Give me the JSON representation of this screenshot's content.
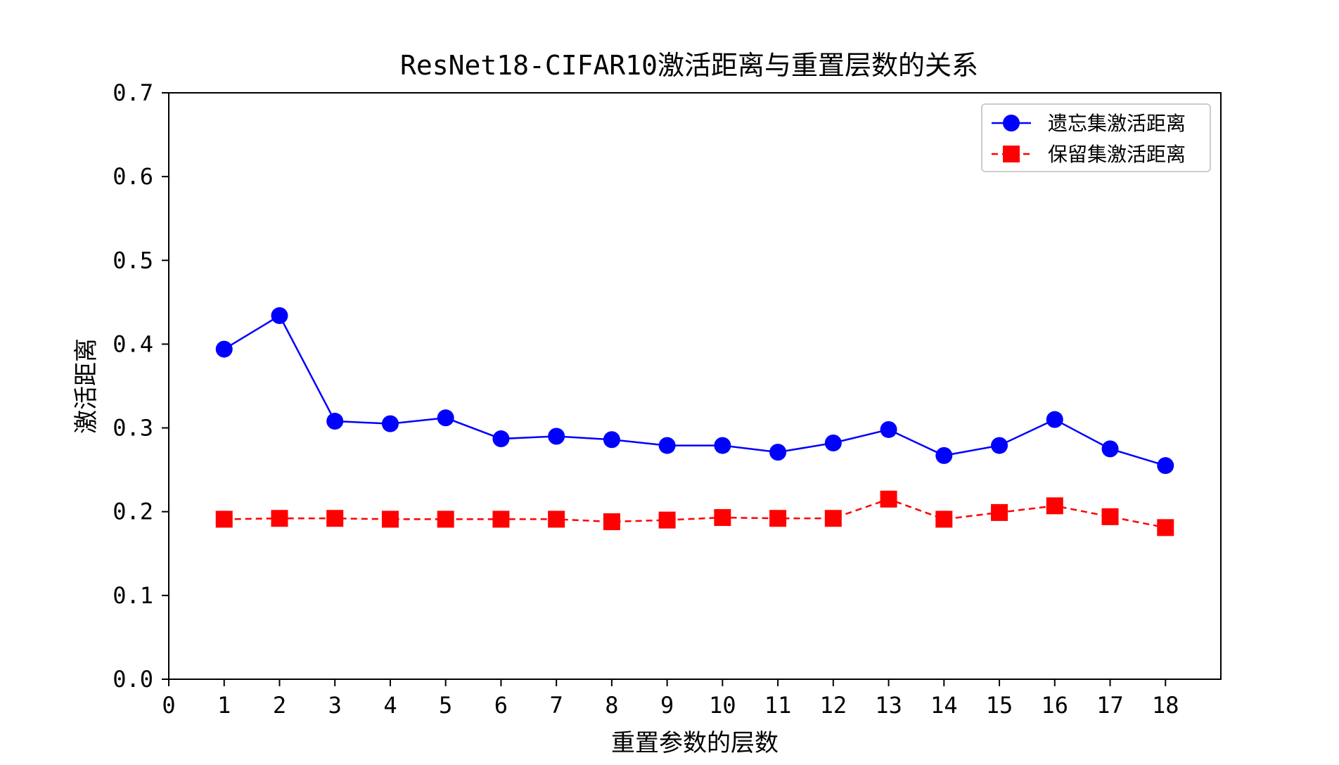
{
  "chart_data": {
    "type": "line",
    "title": "ResNet18-CIFAR10激活距离与重置层数的关系",
    "xlabel": "重置参数的层数",
    "ylabel": "激活距离",
    "xlim": [
      0,
      19
    ],
    "ylim": [
      0.0,
      0.7
    ],
    "xticks": [
      0,
      1,
      2,
      3,
      4,
      5,
      6,
      7,
      8,
      9,
      10,
      11,
      12,
      13,
      14,
      15,
      16,
      17,
      18
    ],
    "yticks": [
      0.0,
      0.1,
      0.2,
      0.3,
      0.4,
      0.5,
      0.6,
      0.7
    ],
    "ytick_labels": [
      "0.0",
      "0.1",
      "0.2",
      "0.3",
      "0.4",
      "0.5",
      "0.6",
      "0.7"
    ],
    "grid": false,
    "legend_position": "top-right",
    "x": [
      1,
      2,
      3,
      4,
      5,
      6,
      7,
      8,
      9,
      10,
      11,
      12,
      13,
      14,
      15,
      16,
      17,
      18
    ],
    "series": [
      {
        "name": "遗忘集激活距离",
        "color": "#0000ff",
        "marker": "circle",
        "line_style": "solid",
        "values": [
          0.394,
          0.434,
          0.308,
          0.305,
          0.312,
          0.287,
          0.29,
          0.286,
          0.279,
          0.279,
          0.271,
          0.282,
          0.298,
          0.267,
          0.279,
          0.31,
          0.275,
          0.255
        ]
      },
      {
        "name": "保留集激活距离",
        "color": "#ff0000",
        "marker": "square",
        "line_style": "dashed",
        "values": [
          0.191,
          0.192,
          0.192,
          0.191,
          0.191,
          0.191,
          0.191,
          0.188,
          0.19,
          0.193,
          0.192,
          0.192,
          0.215,
          0.191,
          0.199,
          0.207,
          0.194,
          0.181
        ]
      }
    ]
  }
}
